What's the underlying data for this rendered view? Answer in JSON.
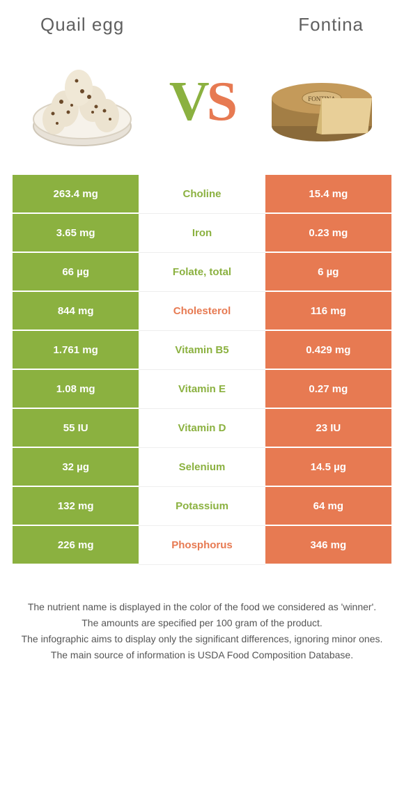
{
  "foods": {
    "left": {
      "name": "Quail egg",
      "color": "#8bb140"
    },
    "right": {
      "name": "Fontina",
      "color": "#e77a52"
    }
  },
  "vs": {
    "left_letter": "V",
    "right_letter": "S"
  },
  "rows": [
    {
      "label": "Choline",
      "left": "263.4 mg",
      "right": "15.4 mg",
      "winner": "left"
    },
    {
      "label": "Iron",
      "left": "3.65 mg",
      "right": "0.23 mg",
      "winner": "left"
    },
    {
      "label": "Folate, total",
      "left": "66 µg",
      "right": "6 µg",
      "winner": "left"
    },
    {
      "label": "Cholesterol",
      "left": "844 mg",
      "right": "116 mg",
      "winner": "right"
    },
    {
      "label": "Vitamin B5",
      "left": "1.761 mg",
      "right": "0.429 mg",
      "winner": "left"
    },
    {
      "label": "Vitamin E",
      "left": "1.08 mg",
      "right": "0.27 mg",
      "winner": "left"
    },
    {
      "label": "Vitamin D",
      "left": "55 IU",
      "right": "23 IU",
      "winner": "left"
    },
    {
      "label": "Selenium",
      "left": "32 µg",
      "right": "14.5 µg",
      "winner": "left"
    },
    {
      "label": "Potassium",
      "left": "132 mg",
      "right": "64 mg",
      "winner": "left"
    },
    {
      "label": "Phosphorus",
      "left": "226 mg",
      "right": "346 mg",
      "winner": "right"
    }
  ],
  "disclaimer": [
    "The nutrient name is displayed in the color of the food we considered as 'winner'.",
    "The amounts are specified per 100 gram of the product.",
    "The infographic aims to display only the significant differences, ignoring minor ones.",
    "The main source of information is USDA Food Composition Database."
  ]
}
